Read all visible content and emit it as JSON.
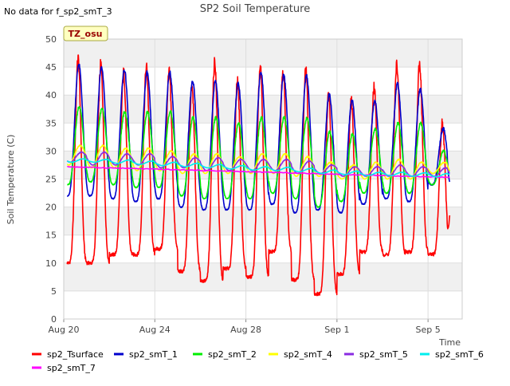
{
  "header": {
    "no_data_note": "No data for f_sp2_smT_3",
    "tz_badge": "TZ_osu"
  },
  "colors": {
    "background": "#ffffff",
    "plot_band": "#f0f0f0",
    "grid": "#dddddd",
    "badge_fill": "#ffffc0",
    "badge_text": "#990000"
  },
  "chart_data": {
    "type": "line",
    "title": "SP2 Soil Temperature",
    "xlabel": "Time",
    "ylabel": "Soil Temperature (C)",
    "ylim": [
      0,
      50
    ],
    "xlim": [
      "2023-08-20",
      "2023-09-06 12:00"
    ],
    "yticks": [
      0,
      5,
      10,
      15,
      20,
      25,
      30,
      35,
      40,
      45,
      50
    ],
    "xticks": [
      {
        "date": "2023-08-20",
        "label": "Aug 20"
      },
      {
        "date": "2023-08-24",
        "label": "Aug 24"
      },
      {
        "date": "2023-08-28",
        "label": "Aug 28"
      },
      {
        "date": "2023-09-01",
        "label": "Sep 1"
      },
      {
        "date": "2023-09-05",
        "label": "Sep 5"
      }
    ],
    "grid": true,
    "legend_placement": "bottom",
    "series": [
      {
        "name": "sp2_Tsurface",
        "color": "#ff0000",
        "daily_min": [
          10.0,
          10.0,
          11.5,
          11.5,
          12.5,
          8.5,
          6.8,
          9.0,
          7.5,
          12.0,
          7.0,
          4.5,
          8.0,
          12.0,
          11.5,
          12.0,
          11.5
        ],
        "daily_max": [
          46.5,
          45.5,
          44.0,
          45.0,
          44.0,
          42.0,
          46.0,
          42.5,
          45.0,
          44.5,
          44.5,
          40.0,
          39.0,
          41.5,
          45.5,
          45.5,
          35.0
        ],
        "end_value": 18.5
      },
      {
        "name": "sp2_smT_1",
        "color": "#0000cc",
        "daily_min": [
          22.0,
          22.0,
          21.5,
          21.0,
          21.5,
          20.0,
          19.5,
          19.5,
          19.5,
          20.5,
          19.0,
          19.5,
          19.0,
          20.5,
          21.5,
          21.0,
          24.0
        ],
        "daily_max": [
          45.5,
          45.0,
          44.5,
          44.0,
          44.0,
          42.5,
          42.5,
          42.0,
          44.0,
          43.5,
          43.5,
          40.0,
          39.0,
          39.0,
          42.0,
          41.0,
          34.0
        ],
        "end_value": 24.5
      },
      {
        "name": "sp2_smT_2",
        "color": "#00ee00",
        "daily_min": [
          24.0,
          24.5,
          24.0,
          23.5,
          23.5,
          22.0,
          21.5,
          21.5,
          21.5,
          22.5,
          21.5,
          20.0,
          21.0,
          22.5,
          22.5,
          22.5,
          24.0
        ],
        "daily_max": [
          38.0,
          37.5,
          37.0,
          37.0,
          37.0,
          36.0,
          36.0,
          35.0,
          36.0,
          36.0,
          36.0,
          33.5,
          33.0,
          34.0,
          35.0,
          35.0,
          30.0
        ],
        "end_value": 26.5
      },
      {
        "name": "sp2_smT_4",
        "color": "#ffff00",
        "daily_min": [
          27.5,
          27.0,
          27.0,
          26.5,
          26.5,
          26.0,
          26.0,
          26.0,
          26.0,
          26.0,
          25.5,
          25.5,
          25.0,
          25.0,
          25.0,
          25.0,
          26.0
        ],
        "daily_max": [
          31.0,
          31.0,
          30.5,
          30.5,
          30.0,
          29.5,
          29.5,
          29.0,
          29.5,
          29.5,
          29.0,
          28.0,
          27.5,
          28.0,
          28.5,
          28.0,
          28.0
        ],
        "end_value": 26.5
      },
      {
        "name": "sp2_smT_5",
        "color": "#8a2be2",
        "daily_min": [
          28.0,
          27.5,
          27.5,
          27.5,
          27.0,
          27.0,
          26.5,
          26.5,
          26.5,
          26.5,
          26.0,
          26.0,
          25.5,
          25.5,
          25.5,
          25.5,
          25.5
        ],
        "daily_max": [
          29.8,
          29.8,
          29.5,
          29.5,
          29.0,
          28.8,
          28.8,
          28.5,
          28.5,
          28.5,
          28.2,
          27.5,
          27.2,
          27.2,
          27.5,
          27.2,
          27.0
        ],
        "end_value": 26.0
      },
      {
        "name": "sp2_smT_6",
        "color": "#00eeee",
        "daily_min": [
          28.0,
          28.0,
          27.8,
          27.6,
          27.4,
          27.2,
          27.0,
          26.8,
          26.6,
          26.5,
          26.3,
          26.0,
          25.8,
          25.6,
          25.6,
          25.5,
          25.4
        ],
        "daily_max": [
          28.6,
          28.5,
          28.4,
          28.2,
          28.0,
          27.8,
          27.6,
          27.4,
          27.2,
          27.1,
          26.9,
          26.6,
          26.4,
          26.2,
          26.2,
          26.1,
          26.0
        ],
        "end_value": 25.8
      },
      {
        "name": "sp2_smT_7",
        "color": "#ff00ff",
        "start_value": 27.2,
        "end_value": 25.3
      }
    ]
  }
}
